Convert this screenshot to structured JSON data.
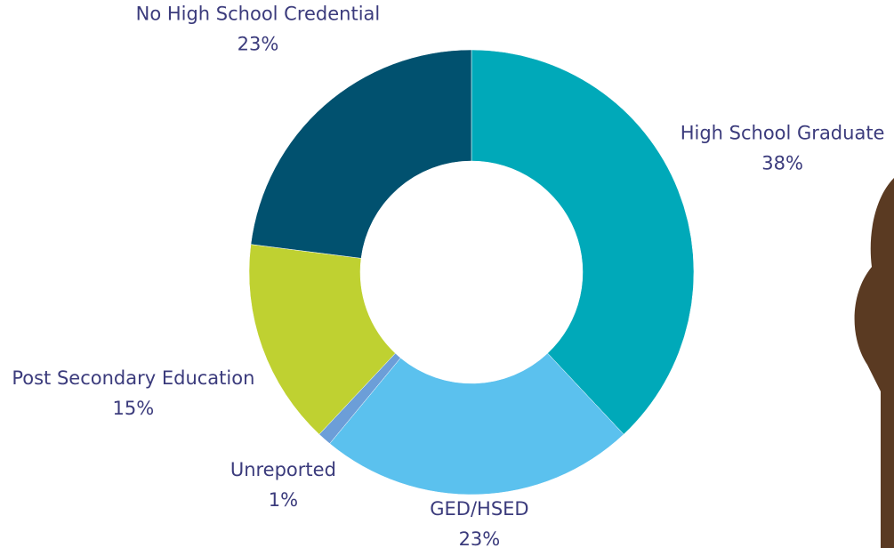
{
  "chart_data": {
    "type": "donut",
    "categories": [
      "High School Graduate",
      "GED/HSED",
      "Unreported",
      "Post Secondary Education",
      "No High School Credential"
    ],
    "values": [
      38,
      23,
      1,
      15,
      23
    ],
    "value_labels": [
      "38%",
      "23%",
      "1%",
      "15%",
      "23%"
    ],
    "colors": [
      "#00a9b9",
      "#5bc1ee",
      "#6c9ed8",
      "#bfd131",
      "#01516f"
    ]
  }
}
